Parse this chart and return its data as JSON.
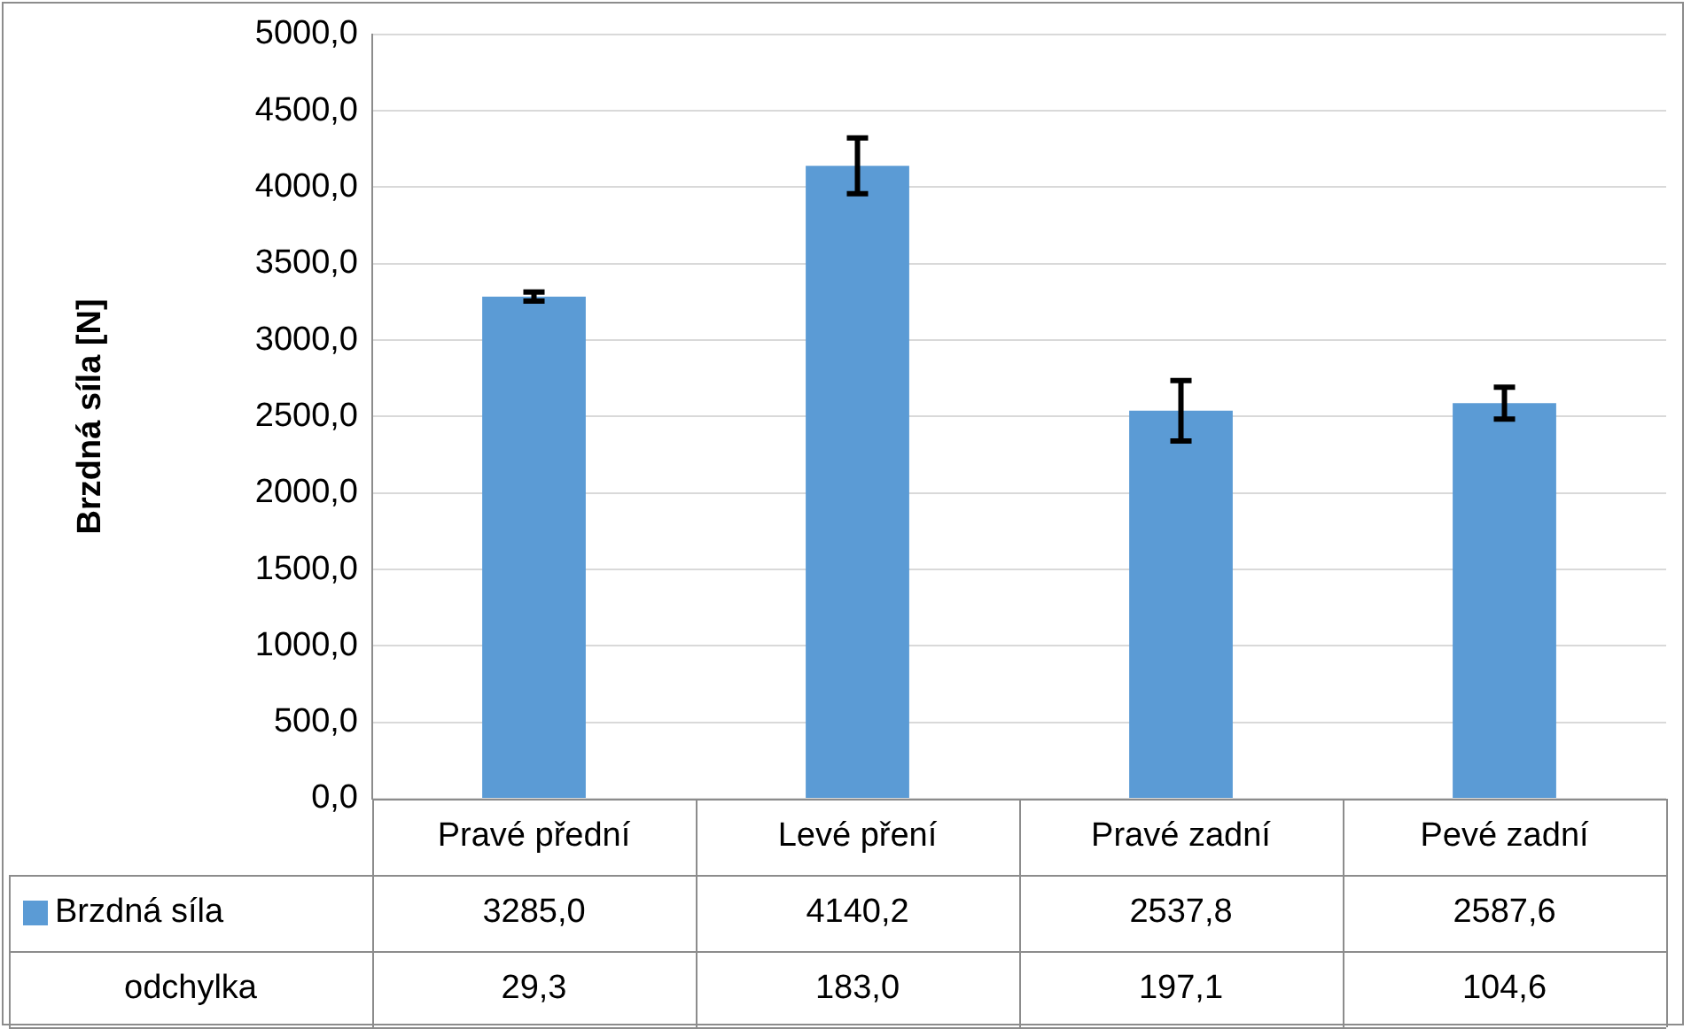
{
  "chart_data": {
    "type": "bar",
    "ylabel": "Brzdná síla [N]",
    "categories": [
      "Pravé přední",
      "Levé pření",
      "Pravé zadní",
      "Pevé zadní"
    ],
    "series": [
      {
        "name": "Brzdná síla",
        "color": "#5b9bd5",
        "values": [
          3285.0,
          4140.2,
          2537.8,
          2587.6
        ],
        "errors": [
          29.3,
          183.0,
          197.1,
          104.6
        ],
        "value_labels": [
          "3285,0",
          "4140,2",
          "2537,8",
          "2587,6"
        ]
      }
    ],
    "annotations": [
      "odchylka",
      "29,3",
      "183,0",
      "197,1",
      "104,6"
    ],
    "ylim": [
      0,
      5000
    ],
    "yticks": [
      {
        "value": 0,
        "label": "0,0"
      },
      {
        "value": 500,
        "label": "500,0"
      },
      {
        "value": 1000,
        "label": "1000,0"
      },
      {
        "value": 1500,
        "label": "1500,0"
      },
      {
        "value": 2000,
        "label": "2000,0"
      },
      {
        "value": 2500,
        "label": "2500,0"
      },
      {
        "value": 3000,
        "label": "3000,0"
      },
      {
        "value": 3500,
        "label": "3500,0"
      },
      {
        "value": 4000,
        "label": "4000,0"
      },
      {
        "value": 4500,
        "label": "4500,0"
      },
      {
        "value": 5000,
        "label": "5000,0"
      }
    ],
    "grid": "y",
    "legend": "bottom",
    "data_labels": true
  }
}
